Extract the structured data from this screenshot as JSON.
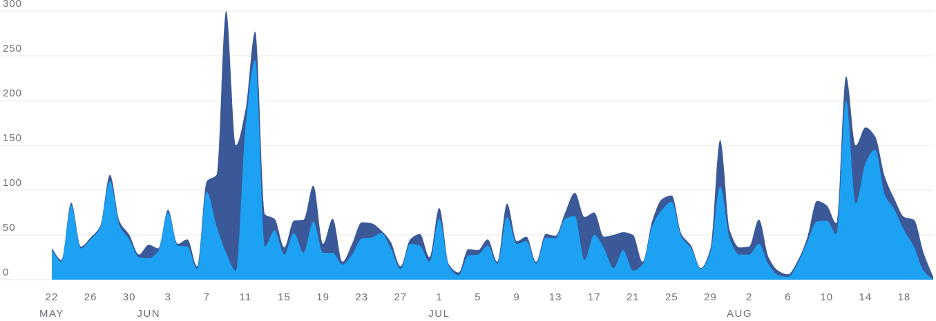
{
  "chart_data": {
    "type": "area",
    "stacked": true,
    "title": "",
    "xlabel": "",
    "ylabel": "",
    "ylim": [
      0,
      300
    ],
    "y_ticks": [
      0,
      50,
      100,
      150,
      200,
      250,
      300
    ],
    "grid": true,
    "legend": "none",
    "x_start_label": "May 22",
    "x_tick_labels": [
      "22",
      "26",
      "30",
      "3",
      "7",
      "11",
      "15",
      "19",
      "23",
      "27",
      "1",
      "5",
      "9",
      "13",
      "17",
      "21",
      "25",
      "29",
      "2",
      "6",
      "10",
      "14",
      "18"
    ],
    "x_month_labels": [
      "MAY",
      "JUN",
      "JUL",
      "AUG"
    ],
    "x": [
      "May 22",
      "May 23",
      "May 24",
      "May 25",
      "May 26",
      "May 27",
      "May 28",
      "May 29",
      "May 30",
      "May 31",
      "Jun 1",
      "Jun 2",
      "Jun 3",
      "Jun 4",
      "Jun 5",
      "Jun 6",
      "Jun 7",
      "Jun 8",
      "Jun 9",
      "Jun 10",
      "Jun 11",
      "Jun 12",
      "Jun 13",
      "Jun 14",
      "Jun 15",
      "Jun 16",
      "Jun 17",
      "Jun 18",
      "Jun 19",
      "Jun 20",
      "Jun 21",
      "Jun 22",
      "Jun 23",
      "Jun 24",
      "Jun 25",
      "Jun 26",
      "Jun 27",
      "Jun 28",
      "Jun 29",
      "Jun 30",
      "Jul 1",
      "Jul 2",
      "Jul 3",
      "Jul 4",
      "Jul 5",
      "Jul 6",
      "Jul 7",
      "Jul 8",
      "Jul 9",
      "Jul 10",
      "Jul 11",
      "Jul 12",
      "Jul 13",
      "Jul 14",
      "Jul 15",
      "Jul 16",
      "Jul 17",
      "Jul 18",
      "Jul 19",
      "Jul 20",
      "Jul 21",
      "Jul 22",
      "Jul 23",
      "Jul 24",
      "Jul 25",
      "Jul 26",
      "Jul 27",
      "Jul 28",
      "Jul 29",
      "Jul 30",
      "Jul 31",
      "Aug 1",
      "Aug 2",
      "Aug 3",
      "Aug 4",
      "Aug 5",
      "Aug 6",
      "Aug 7",
      "Aug 8",
      "Aug 9",
      "Aug 10",
      "Aug 11",
      "Aug 12",
      "Aug 13",
      "Aug 14",
      "Aug 15",
      "Aug 16",
      "Aug 17",
      "Aug 18",
      "Aug 19",
      "Aug 20",
      "Aug 21"
    ],
    "series": [
      {
        "color": "#1da1f2",
        "values": [
          33,
          20,
          83,
          35,
          45,
          58,
          110,
          60,
          45,
          25,
          24,
          32,
          75,
          38,
          37,
          12,
          98,
          60,
          30,
          10,
          170,
          245,
          37,
          55,
          28,
          52,
          30,
          65,
          30,
          30,
          17,
          28,
          46,
          47,
          52,
          35,
          12,
          40,
          38,
          20,
          68,
          15,
          5,
          27,
          28,
          38,
          18,
          70,
          40,
          43,
          18,
          47,
          46,
          68,
          71,
          22,
          50,
          35,
          13,
          33,
          10,
          17,
          60,
          78,
          87,
          48,
          35,
          12,
          30,
          104,
          45,
          28,
          28,
          40,
          17,
          5,
          3,
          18,
          42,
          65,
          66,
          51,
          200,
          85,
          130,
          145,
          95,
          78,
          55,
          37,
          10,
          0
        ]
      },
      {
        "color": "#3b5998",
        "values": [
          2,
          2,
          3,
          2,
          2,
          2,
          7,
          5,
          5,
          3,
          15,
          3,
          3,
          2,
          8,
          3,
          12,
          57,
          270,
          140,
          20,
          32,
          36,
          13,
          8,
          14,
          37,
          40,
          10,
          38,
          3,
          12,
          18,
          16,
          3,
          7,
          3,
          5,
          13,
          5,
          12,
          2,
          3,
          7,
          5,
          7,
          2,
          15,
          3,
          5,
          2,
          4,
          3,
          7,
          26,
          48,
          25,
          13,
          37,
          20,
          40,
          3,
          6,
          12,
          7,
          3,
          3,
          1,
          5,
          52,
          10,
          8,
          9,
          27,
          8,
          5,
          3,
          3,
          5,
          23,
          17,
          12,
          27,
          65,
          40,
          15,
          20,
          12,
          15,
          30,
          20,
          3
        ]
      }
    ]
  }
}
